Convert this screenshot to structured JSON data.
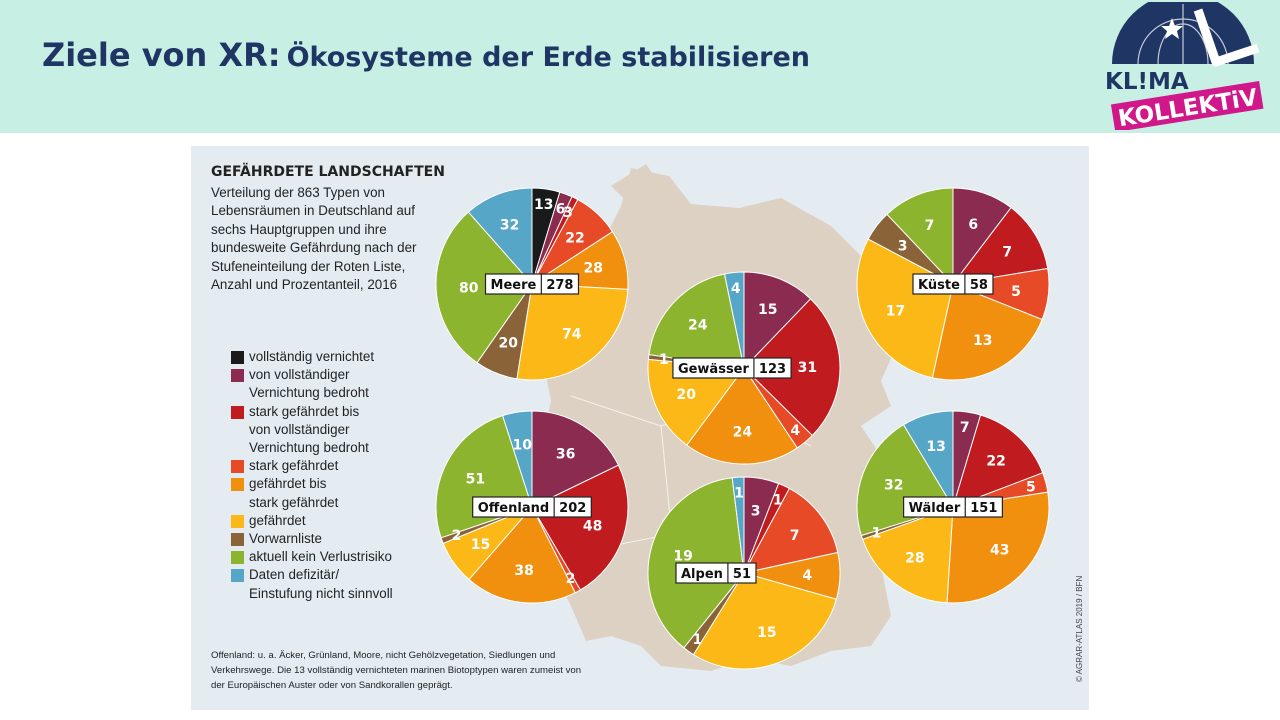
{
  "slide": {
    "title_main": "Ziele von XR:",
    "title_rest": "Ökosysteme der Erde stabilisieren"
  },
  "logo": {
    "line1": "KL!MA",
    "line2": "KOLLEKTiV"
  },
  "colors": {
    "header_bg": "#c7efe4",
    "title": "#1f3564",
    "panel_bg": "#e4ecf2",
    "map": "#ddd1c3"
  },
  "chart_data": {
    "type": "pie",
    "title": "GEFÄHRDETE LANDSCHAFTEN",
    "subtitle": "Verteilung der 863 Typen von Lebensräumen in Deutschland auf sechs Hauptgruppen und ihre bundesweite Gefährdung nach der Stufeneinteilung der Roten Liste, Anzahl und Prozentanteil, 2016",
    "categories": [
      {
        "label": "vollständig vernichtet",
        "color": "#1a1a1a"
      },
      {
        "label": "von vollständiger Vernichtung bedroht",
        "color": "#8a2b4f"
      },
      {
        "label": "stark gefährdet bis von vollständiger Vernichtung bedroht",
        "color": "#c01c20"
      },
      {
        "label": "stark gefährdet",
        "color": "#e64a26"
      },
      {
        "label": "gefährdet bis stark gefährdet",
        "color": "#f0900e"
      },
      {
        "label": "gefährdet",
        "color": "#fbb817"
      },
      {
        "label": "Vorwarnliste",
        "color": "#8a6438"
      },
      {
        "label": "aktuell kein Verlustrisiko",
        "color": "#8db42e"
      },
      {
        "label": "Daten defizitär/ Einstufung nicht sinnvoll",
        "color": "#56a6c8"
      }
    ],
    "legend_lines": [
      [
        "vollständig vernichtet"
      ],
      [
        "von vollständiger",
        "Vernichtung bedroht"
      ],
      [
        "stark gefährdet bis",
        "von vollständiger",
        "Vernichtung bedroht"
      ],
      [
        "stark gefährdet"
      ],
      [
        "gefährdet bis",
        "stark gefährdet"
      ],
      [
        "gefährdet"
      ],
      [
        "Vorwarnliste"
      ],
      [
        "aktuell kein Verlustrisiko"
      ],
      [
        "Daten defizitär/",
        "Einstufung nicht sinnvoll"
      ]
    ],
    "series": [
      {
        "name": "Meere",
        "total": 278,
        "values": [
          13,
          6,
          3,
          22,
          28,
          74,
          20,
          80,
          32
        ]
      },
      {
        "name": "Gewässer",
        "total": 123,
        "values": [
          0,
          15,
          31,
          4,
          24,
          20,
          1,
          24,
          4
        ]
      },
      {
        "name": "Küste",
        "total": 58,
        "values": [
          0,
          6,
          7,
          5,
          13,
          17,
          3,
          7,
          0
        ]
      },
      {
        "name": "Offenland",
        "total": 202,
        "values": [
          0,
          36,
          48,
          2,
          38,
          15,
          2,
          51,
          10
        ]
      },
      {
        "name": "Alpen",
        "total": 51,
        "values": [
          0,
          3,
          1,
          7,
          4,
          15,
          1,
          19,
          1
        ]
      },
      {
        "name": "Wälder",
        "total": 151,
        "values": [
          0,
          7,
          22,
          5,
          43,
          28,
          1,
          32,
          13
        ]
      }
    ],
    "footnote": "Offenland: u. a. Äcker, Grünland, Moore, nicht Gehölzvegetation, Siedlungen und Verkehrswege. Die 13 vollständig vernichteten marinen Biotoptypen waren zumeist von der Europäischen Auster oder von Sandkorallen geprägt.",
    "credit": "© AGRAR-ATLAS 2019 / BFN"
  }
}
